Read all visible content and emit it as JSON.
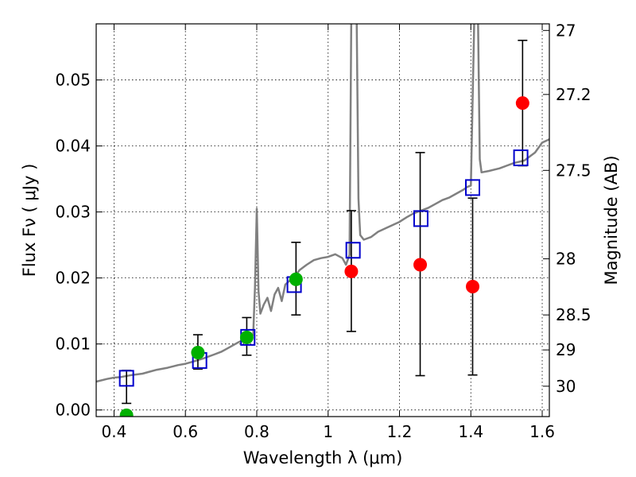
{
  "chart_data": {
    "type": "scatter",
    "title": "",
    "xlabel": "Wavelength  λ (μm)",
    "ylabel": "Flux  Fν  ( μJy )",
    "ylabel_right": "Magnitude (AB)",
    "xlim": [
      0.35,
      1.62
    ],
    "ylim": [
      -0.001,
      0.0585
    ],
    "grid": true,
    "x_ticks": [
      0.4,
      0.6,
      0.8,
      1.0,
      1.2,
      1.4,
      1.6
    ],
    "x_tick_labels": [
      "0.4",
      "0.6",
      "0.8",
      "1",
      "1.2",
      "1.4",
      "1.6"
    ],
    "y_ticks": [
      0.0,
      0.01,
      0.02,
      0.03,
      0.04,
      0.05
    ],
    "y_tick_labels": [
      "0.00",
      "0.01",
      "0.02",
      "0.03",
      "0.04",
      "0.05"
    ],
    "right_ticks": [
      {
        "label": "27",
        "flux": 0.0575
      },
      {
        "label": "27.2",
        "flux": 0.0478
      },
      {
        "label": "27.5",
        "flux": 0.0363
      },
      {
        "label": "28",
        "flux": 0.0229
      },
      {
        "label": "28.5",
        "flux": 0.0144
      },
      {
        "label": "29",
        "flux": 0.0091
      },
      {
        "label": "30",
        "flux": 0.0036
      }
    ],
    "model_spectrum": {
      "color": "#808080",
      "x": [
        0.35,
        0.38,
        0.4,
        0.42,
        0.45,
        0.48,
        0.5,
        0.52,
        0.55,
        0.58,
        0.6,
        0.62,
        0.65,
        0.68,
        0.7,
        0.72,
        0.75,
        0.77,
        0.785,
        0.79,
        0.795,
        0.8,
        0.805,
        0.81,
        0.82,
        0.83,
        0.84,
        0.85,
        0.86,
        0.87,
        0.88,
        0.89,
        0.9,
        0.92,
        0.94,
        0.96,
        0.98,
        1.0,
        1.02,
        1.04,
        1.05,
        1.06,
        1.065,
        1.07,
        1.075,
        1.08,
        1.085,
        1.09,
        1.1,
        1.12,
        1.14,
        1.16,
        1.18,
        1.2,
        1.22,
        1.24,
        1.26,
        1.28,
        1.3,
        1.32,
        1.34,
        1.36,
        1.38,
        1.39,
        1.4,
        1.405,
        1.41,
        1.415,
        1.42,
        1.425,
        1.43,
        1.45,
        1.48,
        1.5,
        1.52,
        1.55,
        1.58,
        1.6,
        1.62
      ],
      "y": [
        0.0043,
        0.0047,
        0.0049,
        0.005,
        0.0053,
        0.0055,
        0.0058,
        0.0061,
        0.0064,
        0.0068,
        0.007,
        0.0073,
        0.0078,
        0.0084,
        0.0088,
        0.0094,
        0.0103,
        0.0108,
        0.0111,
        0.0114,
        0.0185,
        0.0305,
        0.018,
        0.0146,
        0.016,
        0.017,
        0.015,
        0.0175,
        0.0185,
        0.0165,
        0.019,
        0.0195,
        0.0198,
        0.0212,
        0.022,
        0.0227,
        0.023,
        0.0232,
        0.0236,
        0.023,
        0.022,
        0.0235,
        0.06,
        0.06,
        0.06,
        0.06,
        0.032,
        0.0265,
        0.0258,
        0.0262,
        0.027,
        0.0275,
        0.028,
        0.0285,
        0.0292,
        0.0298,
        0.0302,
        0.0306,
        0.0312,
        0.0318,
        0.0322,
        0.0328,
        0.0334,
        0.0338,
        0.034,
        0.047,
        0.06,
        0.06,
        0.06,
        0.038,
        0.036,
        0.0362,
        0.0366,
        0.037,
        0.0374,
        0.0378,
        0.039,
        0.0405,
        0.041
      ]
    },
    "series": [
      {
        "marker": "square",
        "color": "#0000cc",
        "x": [
          0.435,
          0.64,
          0.775,
          0.905,
          1.07,
          1.26,
          1.405,
          1.54
        ],
        "y": [
          0.0048,
          0.0075,
          0.011,
          0.019,
          0.0242,
          0.029,
          0.0337,
          0.0382
        ]
      },
      {
        "marker": "circle",
        "color": "#00b000",
        "x": [
          0.435,
          0.635,
          0.772,
          0.91
        ],
        "y": [
          -0.0008,
          0.0087,
          0.011,
          0.0198
        ],
        "yerr_low": [
          0.001,
          0.0062,
          0.0083,
          0.0144
        ],
        "yerr_high": [
          0.006,
          0.0114,
          0.014,
          0.0254
        ]
      },
      {
        "marker": "circle",
        "color": "#ff0000",
        "x": [
          1.065,
          1.258,
          1.405,
          1.545
        ],
        "y": [
          0.021,
          0.022,
          0.0187,
          0.0465
        ],
        "yerr_low": [
          0.0119,
          0.0052,
          0.0053,
          0.037
        ],
        "yerr_high": [
          0.0302,
          0.039,
          0.0321,
          0.056
        ]
      }
    ]
  }
}
